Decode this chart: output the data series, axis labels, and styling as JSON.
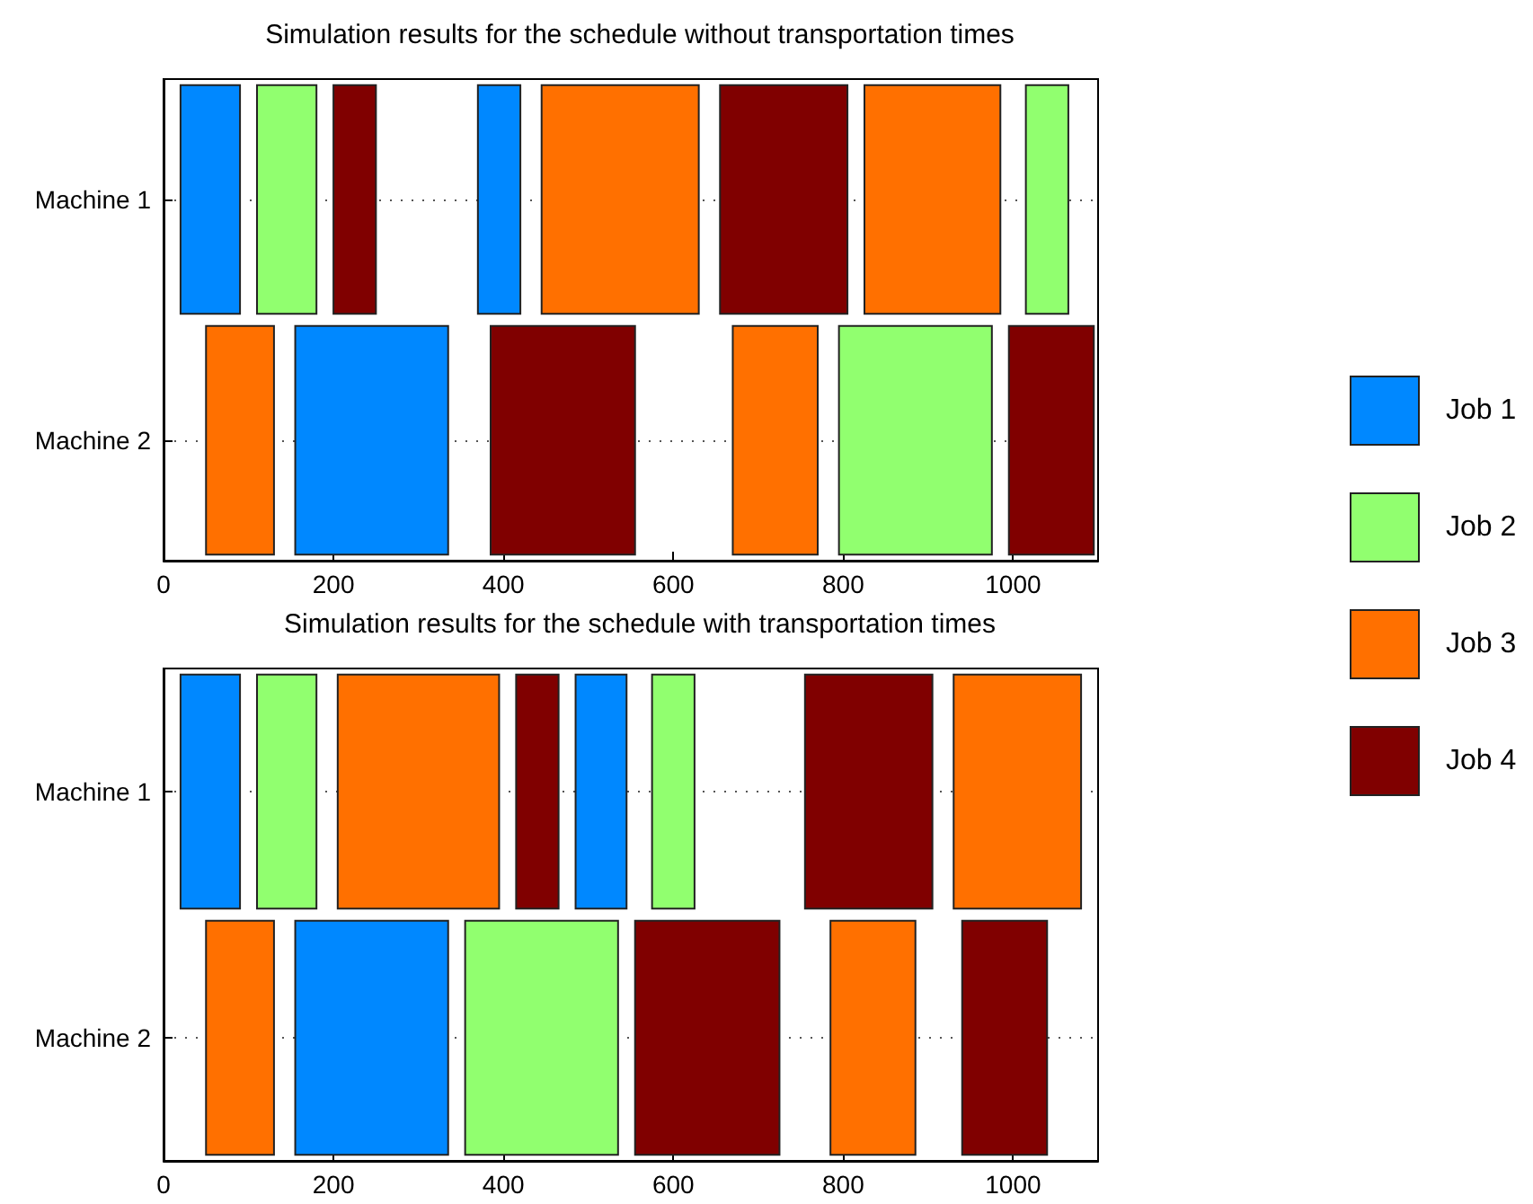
{
  "chart_data": [
    {
      "type": "bar",
      "orientation": "horizontal",
      "title": "Simulation results for the schedule without transportation times",
      "categories": [
        "Machine 1",
        "Machine 2"
      ],
      "series": [
        {
          "name": "Job 1",
          "color": "#0088ff",
          "x": [
            "Machine 1",
            "Machine 1",
            "Machine 2"
          ],
          "values": [
            70,
            50,
            180
          ],
          "base": [
            20,
            370,
            155
          ]
        },
        {
          "name": "Job 2",
          "color": "#91ff6f",
          "x": [
            "Machine 1",
            "Machine 1",
            "Machine 2"
          ],
          "values": [
            70,
            50,
            180
          ],
          "base": [
            110,
            1015,
            795
          ]
        },
        {
          "name": "Job 3",
          "color": "#ff7000",
          "x": [
            "Machine 1",
            "Machine 1",
            "Machine 2",
            "Machine 2"
          ],
          "values": [
            185,
            160,
            80,
            100
          ],
          "base": [
            445,
            825,
            50,
            670
          ]
        },
        {
          "name": "Job 4",
          "color": "#800000",
          "x": [
            "Machine 1",
            "Machine 1",
            "Machine 2",
            "Machine 2"
          ],
          "values": [
            50,
            150,
            170,
            100
          ],
          "base": [
            200,
            655,
            385,
            995
          ]
        }
      ],
      "xlim": [
        0,
        1100
      ],
      "xticks": [
        0,
        200,
        400,
        600,
        800,
        1000
      ],
      "grid": "y",
      "legend": "right"
    },
    {
      "type": "bar",
      "orientation": "horizontal",
      "title": "Simulation results for the schedule with transportation times",
      "categories": [
        "Machine 1",
        "Machine 2"
      ],
      "series": [
        {
          "name": "Job 1",
          "color": "#0088ff",
          "x": [
            "Machine 1",
            "Machine 1",
            "Machine 2"
          ],
          "values": [
            70,
            60,
            180
          ],
          "base": [
            20,
            485,
            155
          ]
        },
        {
          "name": "Job 2",
          "color": "#91ff6f",
          "x": [
            "Machine 1",
            "Machine 1",
            "Machine 2"
          ],
          "values": [
            70,
            50,
            180
          ],
          "base": [
            110,
            575,
            355
          ]
        },
        {
          "name": "Job 3",
          "color": "#ff7000",
          "x": [
            "Machine 1",
            "Machine 1",
            "Machine 2",
            "Machine 2"
          ],
          "values": [
            190,
            150,
            80,
            100
          ],
          "base": [
            205,
            930,
            50,
            785
          ]
        },
        {
          "name": "Job 4",
          "color": "#800000",
          "x": [
            "Machine 1",
            "Machine 1",
            "Machine 2",
            "Machine 2"
          ],
          "values": [
            50,
            150,
            170,
            100
          ],
          "base": [
            415,
            755,
            555,
            940
          ]
        }
      ],
      "xlim": [
        0,
        1100
      ],
      "xticks": [
        0,
        200,
        400,
        600,
        800,
        1000
      ],
      "grid": "y"
    }
  ]
}
